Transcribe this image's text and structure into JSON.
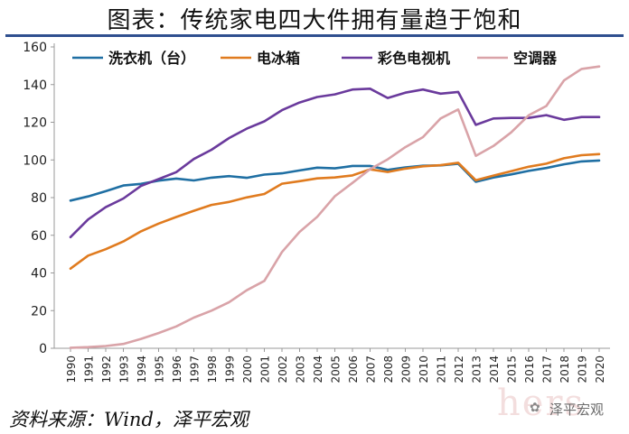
{
  "title": "图表：传统家电四大件拥有量趋于饱和",
  "source": "资料来源：Wind，泽平宏观",
  "watermark": {
    "text": "泽平宏观",
    "icon": "wechat-icon",
    "ghost_text": "hers"
  },
  "chart_data": {
    "type": "line",
    "title": "图表：传统家电四大件拥有量趋于饱和",
    "xlabel": "",
    "ylabel": "",
    "ylim": [
      0,
      160
    ],
    "yticks": [
      0,
      20,
      40,
      60,
      80,
      100,
      120,
      140,
      160
    ],
    "legend_position": "top",
    "grid": false,
    "x": [
      "1990",
      "1991",
      "1992",
      "1993",
      "1994",
      "1995",
      "1996",
      "1997",
      "1998",
      "1999",
      "2000",
      "2001",
      "2002",
      "2003",
      "2004",
      "2005",
      "2006",
      "2007",
      "2008",
      "2009",
      "2010",
      "2011",
      "2012",
      "2013",
      "2014",
      "2015",
      "2016",
      "2017",
      "2018",
      "2019",
      "2020"
    ],
    "series": [
      {
        "name": "洗衣机（台）",
        "color": "#1f6fa3",
        "values": [
          78.4,
          80.6,
          83.4,
          86.4,
          87.3,
          89.0,
          90.1,
          89.1,
          90.6,
          91.4,
          90.5,
          92.2,
          92.9,
          94.4,
          95.9,
          95.5,
          96.8,
          96.8,
          94.7,
          96.0,
          96.9,
          97.1,
          98.0,
          88.4,
          90.7,
          92.3,
          94.2,
          95.7,
          97.7,
          99.2,
          99.7
        ]
      },
      {
        "name": "电冰箱",
        "color": "#e07b1f",
        "values": [
          42.3,
          49.2,
          52.6,
          56.7,
          62.1,
          66.2,
          69.7,
          73.0,
          76.1,
          77.7,
          80.1,
          81.9,
          87.4,
          88.7,
          90.2,
          90.7,
          91.8,
          95.0,
          93.6,
          95.4,
          96.6,
          97.2,
          98.5,
          89.2,
          91.7,
          94.0,
          96.4,
          98.0,
          100.9,
          102.5,
          103.1
        ]
      },
      {
        "name": "彩色电视机",
        "color": "#6a3a9c",
        "values": [
          59.0,
          68.4,
          74.9,
          79.5,
          86.2,
          89.8,
          93.5,
          100.5,
          105.4,
          111.6,
          116.6,
          120.5,
          126.4,
          130.5,
          133.4,
          134.8,
          137.4,
          137.8,
          132.9,
          135.7,
          137.4,
          135.2,
          136.1,
          118.6,
          122.0,
          122.3,
          122.3,
          123.8,
          121.3,
          122.8,
          122.8
        ]
      },
      {
        "name": "空调器",
        "color": "#d9a3a8",
        "values": [
          0.3,
          0.6,
          1.2,
          2.3,
          5.0,
          8.1,
          11.6,
          16.3,
          20.0,
          24.5,
          30.8,
          35.8,
          51.1,
          61.8,
          69.8,
          80.7,
          87.8,
          95.1,
          100.3,
          106.8,
          112.1,
          122.0,
          126.8,
          102.2,
          107.4,
          114.6,
          123.7,
          128.6,
          142.2,
          148.3,
          149.6
        ]
      }
    ]
  }
}
